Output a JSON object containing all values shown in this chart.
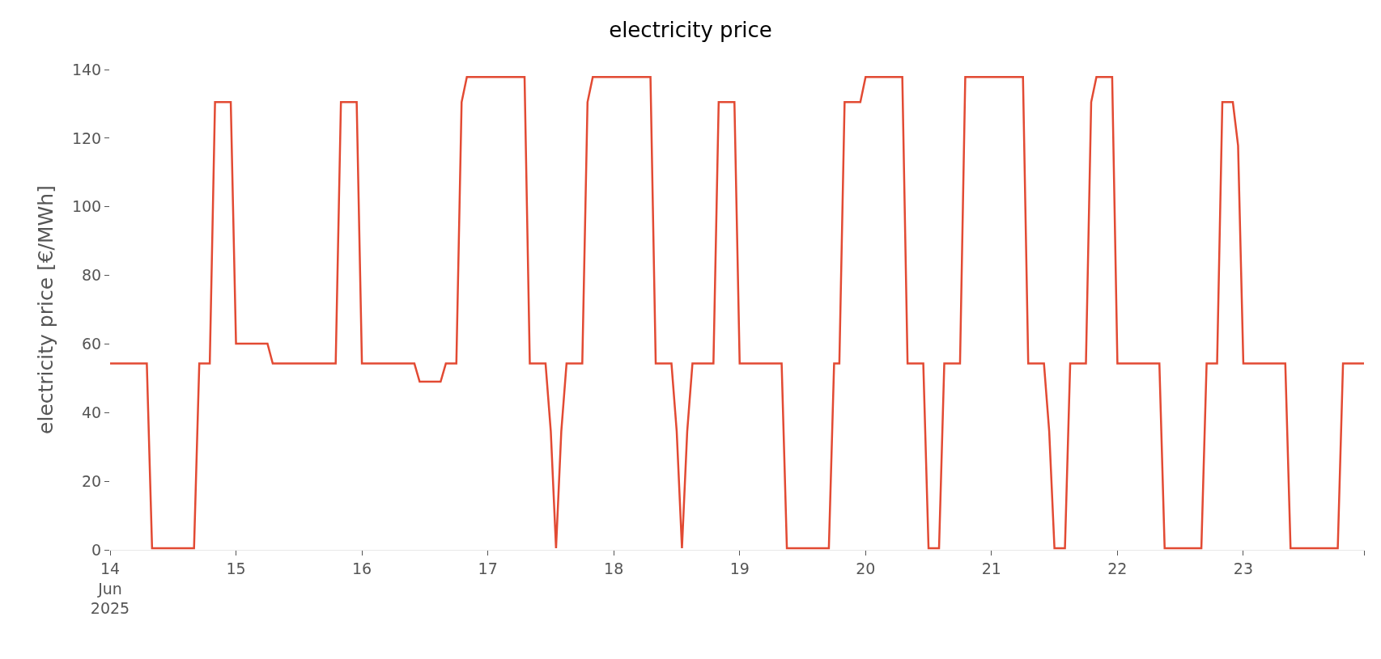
{
  "chart_data": {
    "type": "line",
    "title": "electricity price",
    "ylabel": "electricity price [€/MWh]",
    "x": [
      "2025-06-14T00:00",
      "2025-06-14T07:00",
      "2025-06-14T08:00",
      "2025-06-14T16:00",
      "2025-06-14T17:00",
      "2025-06-14T19:00",
      "2025-06-14T20:00",
      "2025-06-14T23:00",
      "2025-06-15T00:00",
      "2025-06-15T06:00",
      "2025-06-15T07:00",
      "2025-06-15T19:00",
      "2025-06-15T20:00",
      "2025-06-15T23:00",
      "2025-06-16T00:00",
      "2025-06-16T10:00",
      "2025-06-16T11:00",
      "2025-06-16T15:00",
      "2025-06-16T16:00",
      "2025-06-16T18:00",
      "2025-06-16T19:00",
      "2025-06-16T20:00",
      "2025-06-17T07:00",
      "2025-06-17T08:00",
      "2025-06-17T11:00",
      "2025-06-17T12:00",
      "2025-06-17T13:00",
      "2025-06-17T14:00",
      "2025-06-17T15:00",
      "2025-06-17T18:00",
      "2025-06-17T19:00",
      "2025-06-17T20:00",
      "2025-06-18T07:00",
      "2025-06-18T08:00",
      "2025-06-18T11:00",
      "2025-06-18T12:00",
      "2025-06-18T13:00",
      "2025-06-18T14:00",
      "2025-06-18T15:00",
      "2025-06-18T19:00",
      "2025-06-18T20:00",
      "2025-06-18T23:00",
      "2025-06-19T00:00",
      "2025-06-19T08:00",
      "2025-06-19T09:00",
      "2025-06-19T17:00",
      "2025-06-19T18:00",
      "2025-06-19T19:00",
      "2025-06-19T20:00",
      "2025-06-19T23:00",
      "2025-06-20T00:00",
      "2025-06-20T07:00",
      "2025-06-20T08:00",
      "2025-06-20T11:00",
      "2025-06-20T12:00",
      "2025-06-20T14:00",
      "2025-06-20T15:00",
      "2025-06-20T18:00",
      "2025-06-20T19:00",
      "2025-06-21T06:00",
      "2025-06-21T07:00",
      "2025-06-21T10:00",
      "2025-06-21T11:00",
      "2025-06-21T12:00",
      "2025-06-21T14:00",
      "2025-06-21T15:00",
      "2025-06-21T18:00",
      "2025-06-21T19:00",
      "2025-06-21T20:00",
      "2025-06-21T23:00",
      "2025-06-22T00:00",
      "2025-06-22T08:00",
      "2025-06-22T09:00",
      "2025-06-22T16:00",
      "2025-06-22T17:00",
      "2025-06-22T19:00",
      "2025-06-22T20:00",
      "2025-06-22T22:00",
      "2025-06-22T23:00",
      "2025-06-23T00:00",
      "2025-06-23T08:00",
      "2025-06-23T09:00",
      "2025-06-23T18:00",
      "2025-06-23T19:00",
      "2025-06-23T23:00"
    ],
    "series": [
      {
        "color": "#e24a33",
        "values": [
          54.3,
          54.3,
          0.5,
          0.5,
          54.3,
          54.3,
          130.5,
          130.5,
          60.1,
          60.1,
          54.3,
          54.3,
          130.5,
          130.5,
          54.3,
          54.3,
          49.0,
          49.0,
          54.3,
          54.3,
          130.5,
          137.8,
          137.8,
          54.3,
          54.3,
          34.5,
          0.5,
          34.5,
          54.3,
          54.3,
          130.5,
          137.8,
          137.8,
          54.3,
          54.3,
          34.5,
          0.5,
          34.5,
          54.3,
          54.3,
          130.5,
          130.5,
          54.3,
          54.3,
          0.5,
          0.5,
          54.3,
          54.3,
          130.5,
          130.5,
          137.8,
          137.8,
          54.3,
          54.3,
          0.5,
          0.5,
          54.3,
          54.3,
          137.8,
          137.8,
          54.3,
          54.3,
          34.5,
          0.5,
          0.5,
          54.3,
          54.3,
          130.5,
          137.8,
          137.8,
          54.3,
          54.3,
          0.5,
          0.5,
          54.3,
          54.3,
          130.5,
          130.5,
          117.8,
          54.3,
          54.3,
          0.5,
          0.5,
          54.3,
          54.3
        ]
      }
    ],
    "xlim": [
      "2025-06-14T00:00",
      "2025-06-23T23:00"
    ],
    "xticks": [
      {
        "value": "2025-06-14T00:00",
        "label": "14\nJun\n2025"
      },
      {
        "value": "2025-06-15T00:00",
        "label": "15"
      },
      {
        "value": "2025-06-16T00:00",
        "label": "16"
      },
      {
        "value": "2025-06-17T00:00",
        "label": "17"
      },
      {
        "value": "2025-06-18T00:00",
        "label": "18"
      },
      {
        "value": "2025-06-19T00:00",
        "label": "19"
      },
      {
        "value": "2025-06-20T00:00",
        "label": "20"
      },
      {
        "value": "2025-06-21T00:00",
        "label": "21"
      },
      {
        "value": "2025-06-22T00:00",
        "label": "22"
      },
      {
        "value": "2025-06-23T00:00",
        "label": "23"
      },
      {
        "value": "2025-06-23T23:00",
        "label": null
      }
    ],
    "ylim": [
      0,
      140
    ],
    "yticks": [
      0,
      20,
      40,
      60,
      80,
      100,
      120,
      140
    ],
    "grid": false,
    "marker": "none",
    "line_style": "solid"
  }
}
